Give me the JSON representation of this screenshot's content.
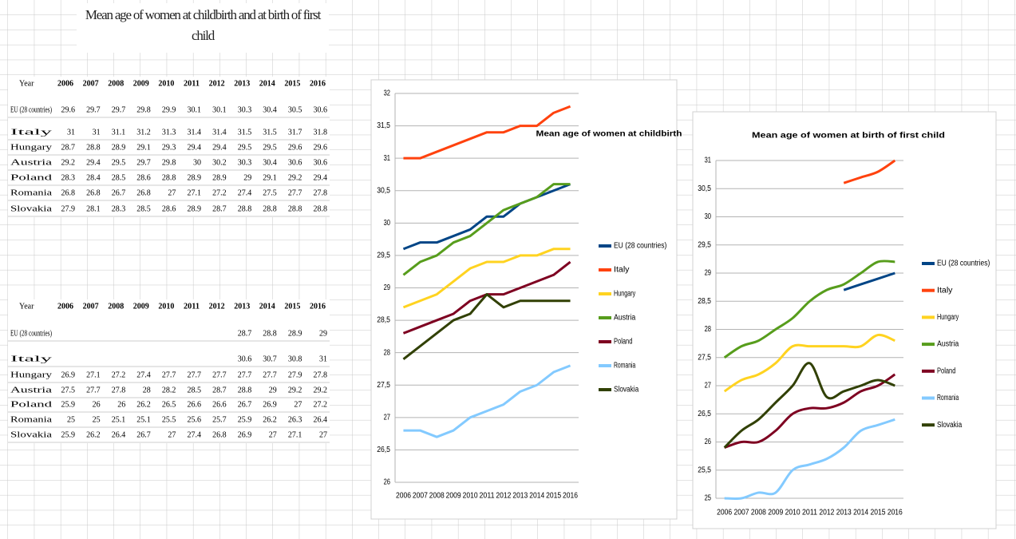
{
  "sheet_title": "Mean age of women at childbirth and at birth of first child",
  "year_header": "Year",
  "chart_data": [
    {
      "type": "line",
      "title": "Mean age of women at childbirth",
      "categories": [
        "2006",
        "2007",
        "2008",
        "2009",
        "2010",
        "2011",
        "2012",
        "2013",
        "2014",
        "2015",
        "2016"
      ],
      "ylim": [
        26,
        32
      ],
      "yticks": [
        26,
        {
          "value": 26.5,
          "label": "26,5"
        },
        27,
        {
          "value": 27.5,
          "label": "27,5"
        },
        28,
        {
          "value": 28.5,
          "label": "28,5"
        },
        29,
        {
          "value": 29.5,
          "label": "29,5"
        },
        30,
        {
          "value": 30.5,
          "label": "30,5"
        },
        31,
        {
          "value": 31.5,
          "label": "31,5"
        },
        32
      ],
      "grid": true,
      "smooth": false,
      "legend": "right",
      "series": [
        {
          "name": "EU (28 countries)",
          "color": "#004586",
          "values": [
            29.6,
            29.7,
            29.7,
            29.8,
            29.9,
            30.1,
            30.1,
            30.3,
            30.4,
            30.5,
            30.6
          ]
        },
        {
          "name": "Italy",
          "color": "#ff420e",
          "values": [
            31,
            31,
            31.1,
            31.2,
            31.3,
            31.4,
            31.4,
            31.5,
            31.5,
            31.7,
            31.8
          ]
        },
        {
          "name": "Hungary",
          "color": "#ffd320",
          "values": [
            28.7,
            28.8,
            28.9,
            29.1,
            29.3,
            29.4,
            29.4,
            29.5,
            29.5,
            29.6,
            29.6
          ]
        },
        {
          "name": "Austria",
          "color": "#579d1c",
          "values": [
            29.2,
            29.4,
            29.5,
            29.7,
            29.8,
            30,
            30.2,
            30.3,
            30.4,
            30.6,
            30.6
          ]
        },
        {
          "name": "Poland",
          "color": "#7e0021",
          "values": [
            28.3,
            28.4,
            28.5,
            28.6,
            28.8,
            28.9,
            28.9,
            29,
            29.1,
            29.2,
            29.4
          ]
        },
        {
          "name": "Romania",
          "color": "#83caff",
          "values": [
            26.8,
            26.8,
            26.7,
            26.8,
            27,
            27.1,
            27.2,
            27.4,
            27.5,
            27.7,
            27.8
          ]
        },
        {
          "name": "Slovakia",
          "color": "#314004",
          "values": [
            27.9,
            28.1,
            28.3,
            28.5,
            28.6,
            28.9,
            28.7,
            28.8,
            28.8,
            28.8,
            28.8
          ]
        }
      ]
    },
    {
      "type": "line",
      "title": "Mean age of women at birth of first child",
      "categories": [
        "2006",
        "2007",
        "2008",
        "2009",
        "2010",
        "2011",
        "2012",
        "2013",
        "2014",
        "2015",
        "2016"
      ],
      "ylim": [
        25,
        31
      ],
      "yticks": [
        25,
        {
          "value": 25.5,
          "label": "25,5"
        },
        26,
        {
          "value": 26.5,
          "label": "26,5"
        },
        27,
        {
          "value": 27.5,
          "label": "27,5"
        },
        28,
        {
          "value": 28.5,
          "label": "28,5"
        },
        29,
        {
          "value": 29.5,
          "label": "29,5"
        },
        30,
        {
          "value": 30.5,
          "label": "30,5"
        },
        31
      ],
      "grid": true,
      "smooth": true,
      "legend": "right",
      "series": [
        {
          "name": "EU (28 countries)",
          "color": "#004586",
          "values": [
            null,
            null,
            null,
            null,
            null,
            null,
            null,
            28.7,
            28.8,
            28.9,
            29
          ]
        },
        {
          "name": "Italy",
          "color": "#ff420e",
          "values": [
            null,
            null,
            null,
            null,
            null,
            null,
            null,
            30.6,
            30.7,
            30.8,
            31
          ]
        },
        {
          "name": "Hungary",
          "color": "#ffd320",
          "values": [
            26.9,
            27.1,
            27.2,
            27.4,
            27.7,
            27.7,
            27.7,
            27.7,
            27.7,
            27.9,
            27.8
          ]
        },
        {
          "name": "Austria",
          "color": "#579d1c",
          "values": [
            27.5,
            27.7,
            27.8,
            28,
            28.2,
            28.5,
            28.7,
            28.8,
            29,
            29.2,
            29.2
          ]
        },
        {
          "name": "Poland",
          "color": "#7e0021",
          "values": [
            25.9,
            26,
            26,
            26.2,
            26.5,
            26.6,
            26.6,
            26.7,
            26.9,
            27,
            27.2
          ]
        },
        {
          "name": "Romania",
          "color": "#83caff",
          "values": [
            25,
            25,
            25.1,
            25.1,
            25.5,
            25.6,
            25.7,
            25.9,
            26.2,
            26.3,
            26.4
          ]
        },
        {
          "name": "Slovakia",
          "color": "#314004",
          "values": [
            25.9,
            26.2,
            26.4,
            26.7,
            27,
            27.4,
            26.8,
            26.9,
            27,
            27.1,
            27
          ]
        }
      ]
    }
  ]
}
